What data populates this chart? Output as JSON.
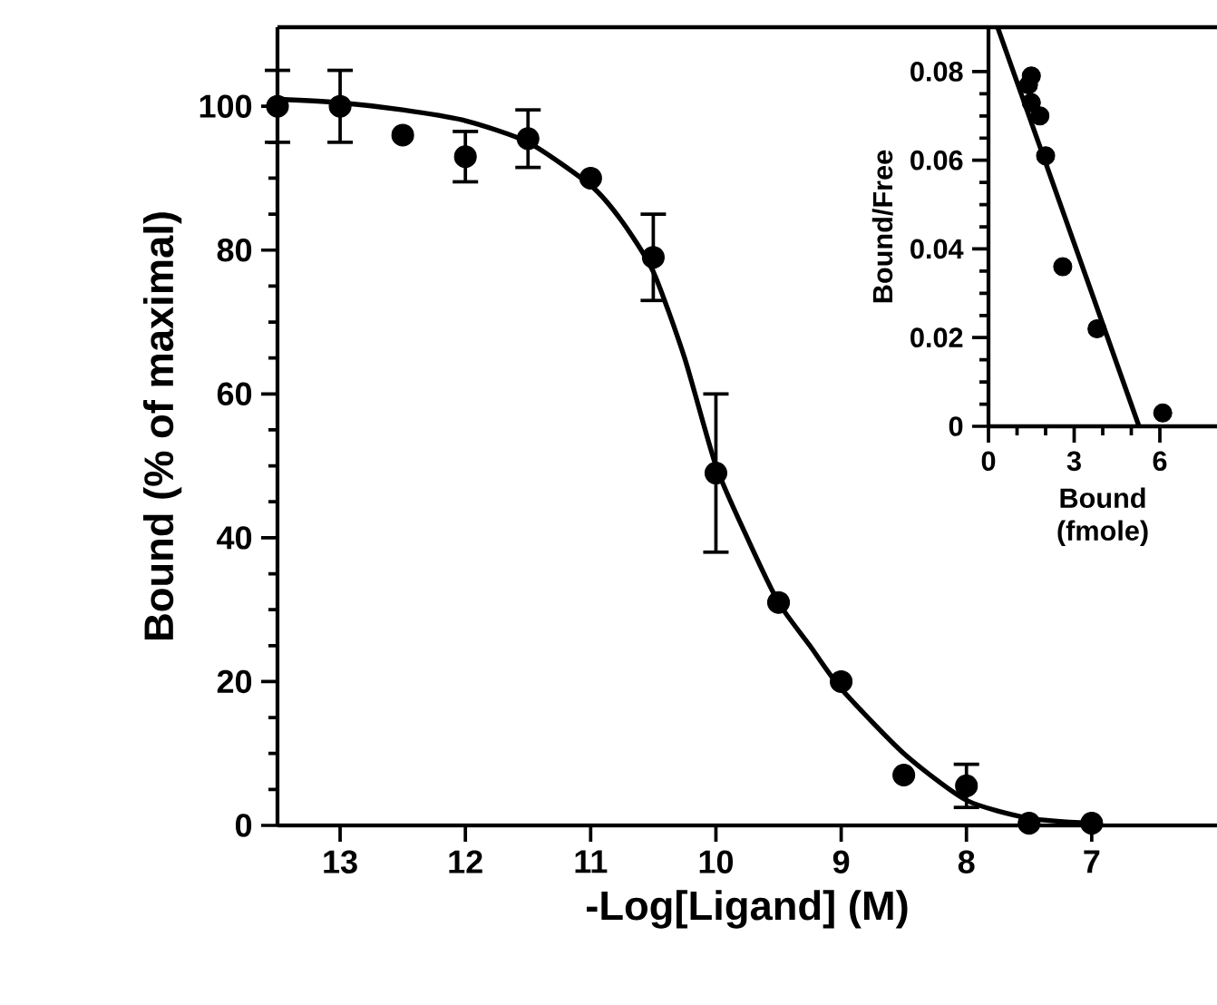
{
  "chart_data": [
    {
      "type": "scatter",
      "xlabel": "-Log[Ligand] (M)",
      "ylabel": "Bound (% of maximal)",
      "xlim": [
        13.5,
        6
      ],
      "ylim": [
        0,
        111
      ],
      "xticks": [
        13,
        12,
        11,
        10,
        9,
        8,
        7
      ],
      "yticks": [
        0,
        20,
        40,
        60,
        80,
        100
      ],
      "series": [
        {
          "type": "scatter",
          "color": "#000000",
          "x": [
            13.5,
            13,
            12.5,
            12,
            11.5,
            11,
            10.5,
            10,
            9.5,
            9,
            8.5,
            8,
            7.5,
            7
          ],
          "values": [
            100,
            100,
            96,
            93,
            95.5,
            90,
            79,
            49,
            31,
            20,
            7,
            5.5,
            0.3,
            0.3
          ],
          "errors": [
            5,
            5,
            null,
            3.5,
            4,
            null,
            6,
            11,
            null,
            null,
            null,
            3,
            null,
            null
          ]
        },
        {
          "type": "line",
          "line_style": "solid",
          "marker": "none",
          "color": "#000000",
          "x": [
            13.5,
            13,
            12.5,
            12,
            11.5,
            11,
            10.75,
            10.5,
            10.25,
            10,
            9.75,
            9.5,
            9.25,
            9,
            8.5,
            8,
            7.5,
            7
          ],
          "values": [
            101,
            100.5,
            99.5,
            98,
            95,
            89,
            84,
            77,
            65,
            50,
            40,
            31,
            25,
            19,
            10,
            3.5,
            1,
            0.3
          ]
        }
      ]
    },
    {
      "type": "scatter",
      "xlabel": "Bound (fmole)",
      "ylabel": "Bound/Free",
      "xlim": [
        0,
        8
      ],
      "ylim": [
        0,
        0.09
      ],
      "xticks": [
        0,
        3,
        6
      ],
      "yticks": [
        0,
        0.02,
        0.04,
        0.06,
        0.08
      ],
      "series": [
        {
          "type": "scatter",
          "color": "#000000",
          "x": [
            1.5,
            1.4,
            1.5,
            1.8,
            2.0,
            2.6,
            3.8,
            6.1
          ],
          "values": [
            0.079,
            0.077,
            0.073,
            0.07,
            0.061,
            0.036,
            0.022,
            0.003
          ]
        },
        {
          "type": "line",
          "line_style": "solid",
          "marker": "none",
          "color": "#000000",
          "x": [
            0.32,
            5.27
          ],
          "values": [
            0.09,
            0
          ]
        }
      ]
    }
  ]
}
